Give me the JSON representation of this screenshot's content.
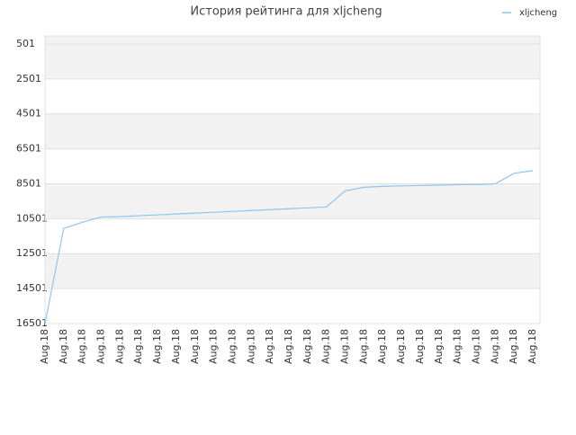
{
  "chart_data": {
    "type": "line",
    "title": "История рейтинга для xljcheng",
    "x": [
      "Aug.18",
      "Aug.18",
      "Aug.18",
      "Aug.18",
      "Aug.18",
      "Aug.18",
      "Aug.18",
      "Aug.18",
      "Aug.18",
      "Aug.18",
      "Aug.18",
      "Aug.18",
      "Aug.18",
      "Aug.18",
      "Aug.18",
      "Aug.18",
      "Aug.18",
      "Aug.18",
      "Aug.18",
      "Aug.18",
      "Aug.18",
      "Aug.18",
      "Aug.18",
      "Aug.18",
      "Aug.18",
      "Aug.18",
      "Aug.18"
    ],
    "series": [
      {
        "name": "xljcheng",
        "color": "#8ec5f0",
        "values": [
          16501,
          11050,
          10700,
          10400,
          10380,
          10330,
          10280,
          10230,
          10180,
          10130,
          10080,
          10030,
          9980,
          9930,
          9880,
          9830,
          8900,
          8701,
          8650,
          8620,
          8600,
          8580,
          8550,
          8540,
          8500,
          7900,
          7750
        ]
      }
    ],
    "ylim": [
      16501,
      38
    ],
    "yticks": [
      501,
      2501,
      4501,
      6501,
      8501,
      10501,
      12501,
      14501,
      16501
    ],
    "grid": true,
    "legend": "top-right"
  }
}
